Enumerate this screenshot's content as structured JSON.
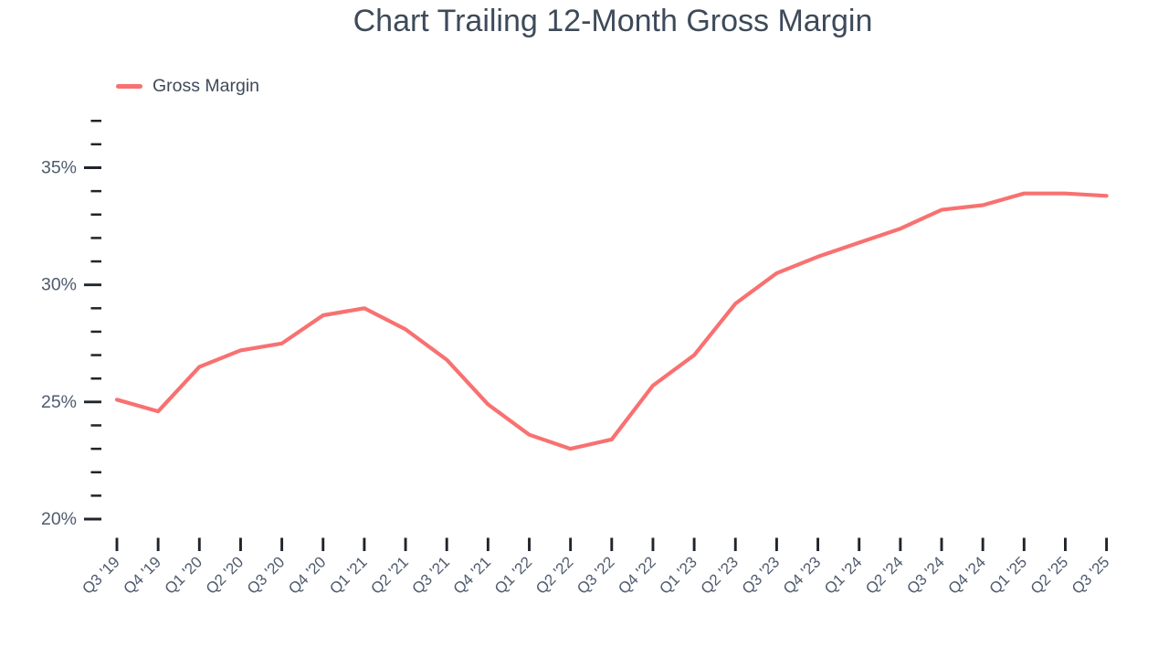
{
  "chart_data": {
    "type": "line",
    "title": "Chart Trailing 12-Month Gross Margin",
    "xlabel": "",
    "ylabel": "",
    "categories": [
      "Q3 '19",
      "Q4 '19",
      "Q1 '20",
      "Q2 '20",
      "Q3 '20",
      "Q4 '20",
      "Q1 '21",
      "Q2 '21",
      "Q3 '21",
      "Q4 '21",
      "Q1 '22",
      "Q2 '22",
      "Q3 '22",
      "Q4 '22",
      "Q1 '23",
      "Q2 '23",
      "Q3 '23",
      "Q4 '23",
      "Q1 '24",
      "Q2 '24",
      "Q3 '24",
      "Q4 '24",
      "Q1 '25",
      "Q2 '25",
      "Q3 '25"
    ],
    "series": [
      {
        "name": "Gross Margin",
        "color": "#f87171",
        "values": [
          25.1,
          24.6,
          26.5,
          27.2,
          27.5,
          28.7,
          29.0,
          28.1,
          26.8,
          24.9,
          23.6,
          23.0,
          23.4,
          25.7,
          27.0,
          29.2,
          30.5,
          31.2,
          31.8,
          32.4,
          33.2,
          33.4,
          33.9,
          33.9,
          33.8
        ]
      }
    ],
    "ylim": [
      20,
      37
    ],
    "y_major_ticks": [
      20,
      25,
      30,
      35
    ],
    "y_tick_labels": [
      "20%",
      "25%",
      "30%",
      "35%"
    ],
    "y_minor_tick_step": 1,
    "grid": false,
    "legend_position": "top-left",
    "background": "#ffffff",
    "title_color": "#3e4a59",
    "axis_label_color": "#4f5b6e",
    "tick_color": "#20242c"
  }
}
